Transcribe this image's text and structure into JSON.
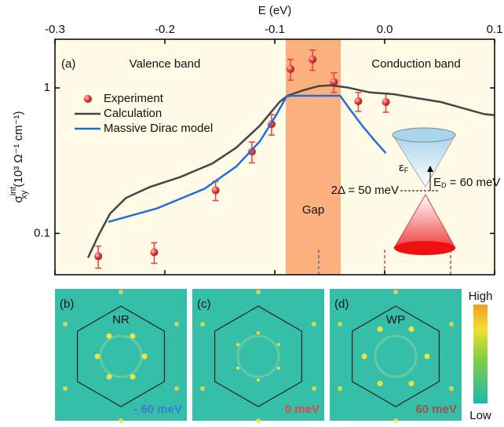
{
  "chart_data": {
    "type": "line",
    "xlabel": "E (eV)",
    "ylabel": {
      "main": "σ",
      "sup": "int",
      "sub": "xy",
      "units": " (10³ Ω⁻¹ cm⁻¹)"
    },
    "xlim": [
      -0.3,
      0.1
    ],
    "xticks": [
      -0.3,
      -0.2,
      -0.1,
      {
        "value": 0,
        "label": "0.0"
      },
      0.1
    ],
    "ylim": [
      0.052,
      2.16
    ],
    "yticks": [
      0.1,
      1
    ],
    "log_y": true,
    "background": "#fffbe6",
    "shaded_region": {
      "x": [
        -0.09,
        -0.04
      ],
      "label": "Gap",
      "color": "#fbb07d"
    },
    "markers": [
      {
        "x": -0.06,
        "color": "#3a7bd5"
      },
      {
        "x": 0,
        "color": "#e04848"
      },
      {
        "x": 0.06,
        "color": "#b0504a"
      }
    ],
    "annotations": {
      "panel": "(a)",
      "valence": "Valence band",
      "conduction": "Conduction band"
    },
    "inset": {
      "fermi": "ε",
      "fermi_sub": "F",
      "dirac": "E",
      "dirac_sub": "D",
      "dirac_value": " = 60 meV",
      "gap": "2Δ = 50 meV"
    },
    "series": [
      {
        "name": "Experiment",
        "mode": "markers",
        "color": "#e8403c",
        "x": [
          -0.2606,
          -0.2097,
          -0.1538,
          -0.1208,
          -0.1029,
          -0.0857,
          -0.0656,
          -0.0462,
          -0.024,
          0.0011
        ],
        "values": [
          0.0697,
          0.0742,
          0.198,
          0.365,
          0.564,
          1.35,
          1.57,
          1.1,
          0.81,
          0.8
        ],
        "errors": [
          0.012,
          0.012,
          0.03,
          0.06,
          0.09,
          0.22,
          0.25,
          0.17,
          0.12,
          0.12
        ]
      },
      {
        "name": "Calculation",
        "mode": "line",
        "color": "#454545",
        "x": [
          -0.2699,
          -0.2606,
          -0.2498,
          -0.2355,
          -0.214,
          -0.1853,
          -0.1566,
          -0.1351,
          -0.1136,
          -0.0957,
          -0.0885,
          -0.0742,
          -0.0598,
          -0.0491,
          -0.0348,
          -0.0133,
          0.0082,
          0.0297,
          0.0513,
          0.0728,
          0.0907,
          0.1
        ],
        "values": [
          0.068,
          0.0963,
          0.137,
          0.175,
          0.208,
          0.245,
          0.303,
          0.388,
          0.55,
          0.8,
          0.883,
          0.963,
          1.03,
          1.04,
          1.01,
          0.93,
          0.905,
          0.85,
          0.8,
          0.72,
          0.66,
          0.65
        ]
      },
      {
        "name": "Massive Dirac model",
        "mode": "line",
        "color": "#1f6fd6",
        "x": [
          -0.2513,
          -0.2068,
          -0.1638,
          -0.1351,
          -0.1136,
          -0.0993,
          -0.0893,
          -0.085,
          -0.0405,
          -0.0312,
          -0.0204,
          -0.0097,
          0.0011
        ],
        "values": [
          0.12,
          0.149,
          0.203,
          0.288,
          0.429,
          0.639,
          0.872,
          0.883,
          0.883,
          0.706,
          0.55,
          0.44,
          0.356
        ]
      }
    ],
    "panels": [
      {
        "label": "(b)",
        "feature": "NR",
        "energy": "- 60 meV",
        "energy_color": "#3a7bd5"
      },
      {
        "label": "(c)",
        "energy": "0 meV",
        "energy_color": "#e04848"
      },
      {
        "label": "(d)",
        "feature": "WP",
        "energy": "60 meV",
        "energy_color": "#a0504a"
      }
    ],
    "colorbar": {
      "high": "High",
      "low": "Low"
    }
  }
}
